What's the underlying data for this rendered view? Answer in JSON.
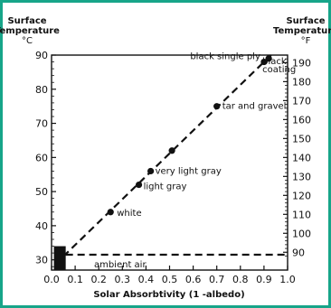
{
  "chart_data": {
    "type": "scatter",
    "xlabel": "Solar Absorbtivity (1 -albedo)",
    "ylabel_left": "Surface Temperature °C",
    "ylabel_right": "Surface Temperature °F",
    "left_title": [
      "Surface",
      "Temperature",
      "°C"
    ],
    "right_title": [
      "Surface",
      "Temperature",
      "°F"
    ],
    "xlim": [
      0.0,
      1.0
    ],
    "ylim": [
      27,
      90
    ],
    "xticks": [
      0.0,
      0.1,
      0.2,
      0.3,
      0.4,
      0.5,
      0.6,
      0.7,
      0.8,
      0.9,
      1.0
    ],
    "yticks_left": [
      30,
      40,
      50,
      60,
      70,
      80,
      90
    ],
    "yticks_right": [
      90,
      100,
      110,
      120,
      130,
      140,
      150,
      160,
      170,
      180,
      190
    ],
    "grid": false,
    "points": [
      {
        "x": 0.25,
        "y": 44,
        "label": "white"
      },
      {
        "x": 0.37,
        "y": 52,
        "label": "light gray"
      },
      {
        "x": 0.42,
        "y": 56,
        "label": "very light gray"
      },
      {
        "x": 0.51,
        "y": 62,
        "label": ""
      },
      {
        "x": 0.7,
        "y": 75,
        "label": "tar and gravel"
      },
      {
        "x": 0.9,
        "y": 88,
        "label": "black single ply"
      },
      {
        "x": 0.92,
        "y": 89,
        "label": "black coating"
      }
    ],
    "trend_line": {
      "from": [
        0.05,
        31
      ],
      "to": [
        0.93,
        90
      ],
      "style": "dashed"
    },
    "ambient_air": {
      "y": 31.5,
      "label": "ambient air",
      "style": "dashed"
    },
    "marker_block": {
      "x": [
        0.01,
        0.06
      ],
      "y": [
        27,
        34
      ]
    },
    "colors": {
      "border": "#17a589",
      "ink": "#111111"
    }
  }
}
